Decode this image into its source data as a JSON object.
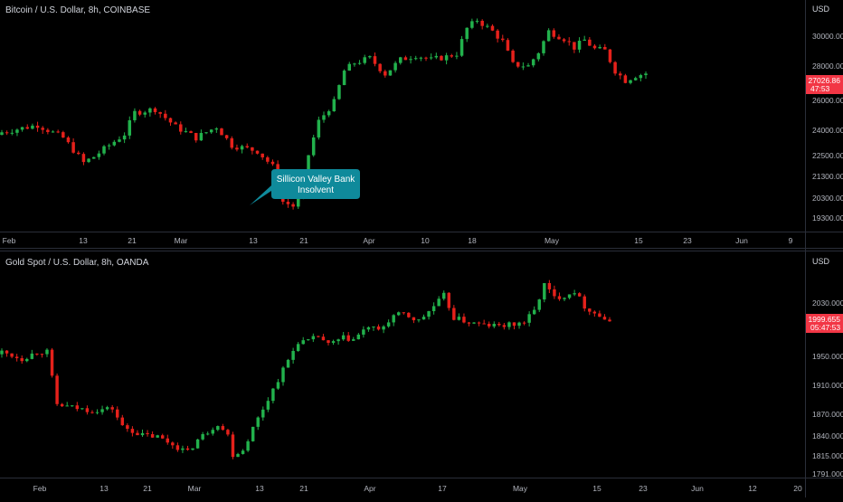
{
  "colors": {
    "background": "#000000",
    "up": "#22b14c",
    "down": "#e5211b",
    "axis_text": "#b2b5be",
    "separator": "#2a2e39",
    "price_label_bg": "#f23645",
    "callout_bg": "#0f8a9b"
  },
  "chart_data": [
    {
      "type": "candlestick",
      "title": "Bitcoin / U.S. Dollar, 8h, COINBASE",
      "currency": "USD",
      "x_ticks": [
        "Feb",
        "13",
        "21",
        "Mar",
        "13",
        "21",
        "Apr",
        "10",
        "18",
        "May",
        "15",
        "23",
        "Jun",
        "9"
      ],
      "y_ticks": [
        "30000.00",
        "28000.00",
        "26000.00",
        "24000.00",
        "22500.00",
        "21300.00",
        "20300.00",
        "19300.00"
      ],
      "ylim": [
        19000,
        31500
      ],
      "y_scale": "log",
      "last_price": "27026.86",
      "countdown": "47:53",
      "annotation": {
        "text_line1": "Sillicon Valley Bank",
        "text_line2": "Insolvent"
      },
      "path": [
        [
          0,
          23600
        ],
        [
          7,
          24000
        ],
        [
          12,
          23300
        ],
        [
          16,
          22000
        ],
        [
          18,
          22300
        ],
        [
          24,
          23500
        ],
        [
          26,
          24700
        ],
        [
          30,
          24900
        ],
        [
          34,
          23900
        ],
        [
          38,
          23300
        ],
        [
          42,
          23900
        ],
        [
          45,
          22900
        ],
        [
          50,
          22600
        ],
        [
          53,
          21800
        ],
        [
          55,
          20100
        ],
        [
          57,
          19900
        ],
        [
          58,
          20300
        ],
        [
          60,
          22400
        ],
        [
          62,
          24200
        ],
        [
          65,
          25300
        ],
        [
          67,
          27200
        ],
        [
          69,
          27700
        ],
        [
          72,
          28000
        ],
        [
          75,
          27000
        ],
        [
          78,
          27900
        ],
        [
          81,
          28200
        ],
        [
          84,
          27900
        ],
        [
          87,
          28100
        ],
        [
          89,
          28300
        ],
        [
          91,
          30000
        ],
        [
          93,
          30600
        ],
        [
          96,
          29800
        ],
        [
          98,
          29100
        ],
        [
          100,
          27600
        ],
        [
          103,
          27500
        ],
        [
          105,
          28400
        ],
        [
          107,
          29800
        ],
        [
          110,
          29300
        ],
        [
          112,
          28700
        ],
        [
          114,
          29200
        ],
        [
          116,
          28600
        ],
        [
          118,
          28500
        ],
        [
          120,
          27200
        ],
        [
          122,
          26600
        ],
        [
          124,
          26900
        ],
        [
          126,
          27026.86
        ]
      ]
    },
    {
      "type": "candlestick",
      "title": "Gold Spot / U.S. Dollar, 8h, OANDA",
      "currency": "USD",
      "x_ticks": [
        "Feb",
        "13",
        "21",
        "Mar",
        "13",
        "21",
        "Apr",
        "17",
        "May",
        "15",
        "23",
        "Jun",
        "12",
        "20"
      ],
      "y_ticks": [
        "2030.000",
        "1950.000",
        "1910.000",
        "1870.000",
        "1840.000",
        "1815.000",
        "1791.000"
      ],
      "ylim": [
        1785,
        2075
      ],
      "y_scale": "log",
      "last_price": "1999.655",
      "countdown": "05:47:53",
      "path": [
        [
          0,
          1955
        ],
        [
          4,
          1945
        ],
        [
          7,
          1955
        ],
        [
          9,
          1955
        ],
        [
          11,
          1880
        ],
        [
          15,
          1875
        ],
        [
          18,
          1872
        ],
        [
          22,
          1875
        ],
        [
          24,
          1850
        ],
        [
          28,
          1838
        ],
        [
          31,
          1836
        ],
        [
          35,
          1822
        ],
        [
          37,
          1815
        ],
        [
          39,
          1832
        ],
        [
          43,
          1854
        ],
        [
          45,
          1838
        ],
        [
          46,
          1812
        ],
        [
          48,
          1818
        ],
        [
          50,
          1848
        ],
        [
          53,
          1888
        ],
        [
          57,
          1943
        ],
        [
          59,
          1970
        ],
        [
          61,
          1970
        ],
        [
          63,
          1978
        ],
        [
          65,
          1965
        ],
        [
          68,
          1975
        ],
        [
          70,
          1973
        ],
        [
          73,
          1992
        ],
        [
          75,
          1985
        ],
        [
          78,
          2008
        ],
        [
          80,
          2010
        ],
        [
          83,
          2000
        ],
        [
          86,
          2022
        ],
        [
          88,
          2038
        ],
        [
          90,
          2005
        ],
        [
          93,
          1998
        ],
        [
          96,
          1994
        ],
        [
          99,
          1993
        ],
        [
          102,
          1995
        ],
        [
          104,
          1999
        ],
        [
          106,
          2015
        ],
        [
          108,
          2055
        ],
        [
          110,
          2035
        ],
        [
          112,
          2038
        ],
        [
          114,
          2045
        ],
        [
          116,
          2022
        ],
        [
          118,
          2012
        ],
        [
          120,
          2003
        ],
        [
          121,
          1999.655
        ]
      ]
    }
  ],
  "bottom_axis_label_color": "#b2b5be"
}
